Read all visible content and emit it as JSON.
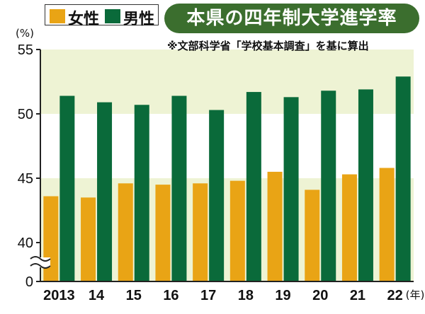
{
  "title": "本県の四年制大学進学率",
  "source_note": "※文部科学省「学校基本調査」を基に算出",
  "y_unit": "(%)",
  "x_unit": "(年)",
  "colors": {
    "female": "#e9a415",
    "male": "#0a6a3a",
    "band": "#eef3d4",
    "axis": "#222222"
  },
  "legend": [
    {
      "name": "女性",
      "color": "#e9a415"
    },
    {
      "name": "男性",
      "color": "#0a6a3a"
    }
  ],
  "chart_data": {
    "type": "bar",
    "title": "本県の四年制大学進学率",
    "xlabel": "(年)",
    "ylabel": "(%)",
    "categories": [
      "2013",
      "14",
      "15",
      "16",
      "17",
      "18",
      "19",
      "20",
      "21",
      "22"
    ],
    "series": [
      {
        "name": "女性",
        "values": [
          43.6,
          43.5,
          44.6,
          44.5,
          44.6,
          44.8,
          45.5,
          44.1,
          45.3,
          45.8
        ]
      },
      {
        "name": "男性",
        "values": [
          51.4,
          50.9,
          50.7,
          51.4,
          50.3,
          51.7,
          51.3,
          51.8,
          51.9,
          52.9
        ]
      }
    ],
    "yticks": [
      0,
      40,
      45,
      50,
      55
    ],
    "ylim": [
      40,
      55
    ],
    "axis_break": true,
    "grid": false,
    "legend_position": "top-left"
  }
}
